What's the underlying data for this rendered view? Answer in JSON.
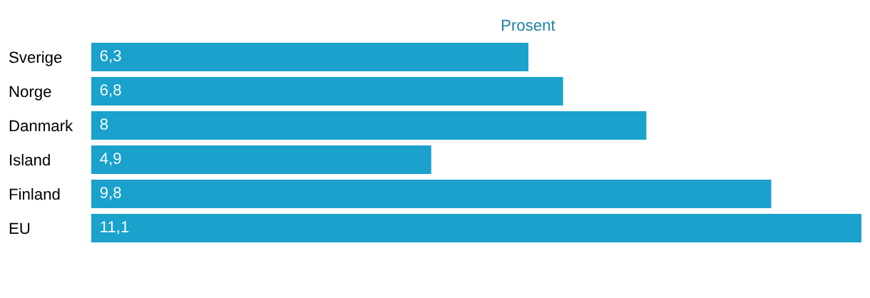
{
  "chart_data": {
    "type": "bar",
    "orientation": "horizontal",
    "xlabel": "Prosent",
    "categories": [
      "Sverige",
      "Norge",
      "Danmark",
      "Island",
      "Finland",
      "EU"
    ],
    "values": [
      6.3,
      6.8,
      8,
      4.9,
      9.8,
      11.1
    ],
    "value_labels": [
      "6,3",
      "6,8",
      "8",
      "4,9",
      "9,8",
      "11,1"
    ],
    "color": "#1aa1cc",
    "grid": false,
    "legend": false
  }
}
